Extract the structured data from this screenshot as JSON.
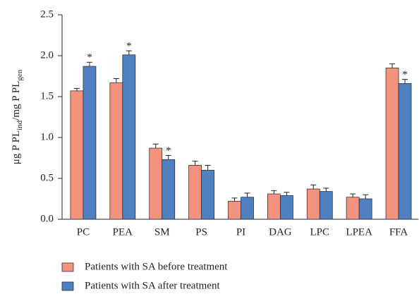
{
  "chart_data": {
    "type": "bar",
    "ylabel": [
      "μg P PL",
      "ind",
      "/mg P PL",
      "gen"
    ],
    "categories": [
      "PC",
      "PEA",
      "SM",
      "PS",
      "PI",
      "DAG",
      "LPC",
      "LPEA",
      "FFA"
    ],
    "series": [
      {
        "name": "Patients with SA before treatment",
        "color": "#f4937d",
        "values": [
          1.57,
          1.67,
          0.87,
          0.66,
          0.22,
          0.31,
          0.37,
          0.27,
          1.85
        ],
        "errors": [
          0.03,
          0.05,
          0.05,
          0.05,
          0.04,
          0.04,
          0.05,
          0.04,
          0.05
        ],
        "annotations": [
          null,
          null,
          null,
          null,
          null,
          null,
          null,
          null,
          null
        ]
      },
      {
        "name": "Patients with SA after treatment",
        "color": "#4f80c1",
        "values": [
          1.87,
          2.01,
          0.73,
          0.6,
          0.27,
          0.29,
          0.34,
          0.25,
          1.66
        ],
        "errors": [
          0.05,
          0.05,
          0.05,
          0.06,
          0.05,
          0.04,
          0.04,
          0.05,
          0.05
        ],
        "annotations": [
          "*",
          "*",
          "*",
          null,
          null,
          null,
          null,
          null,
          "*"
        ]
      }
    ],
    "ylim": [
      0,
      2.5
    ],
    "yticks": [
      {
        "value": 0,
        "label": "0.0"
      },
      0.5,
      {
        "value": 1,
        "label": "1.0"
      },
      1.5,
      {
        "value": 2,
        "label": "2.0"
      },
      2.5
    ]
  }
}
